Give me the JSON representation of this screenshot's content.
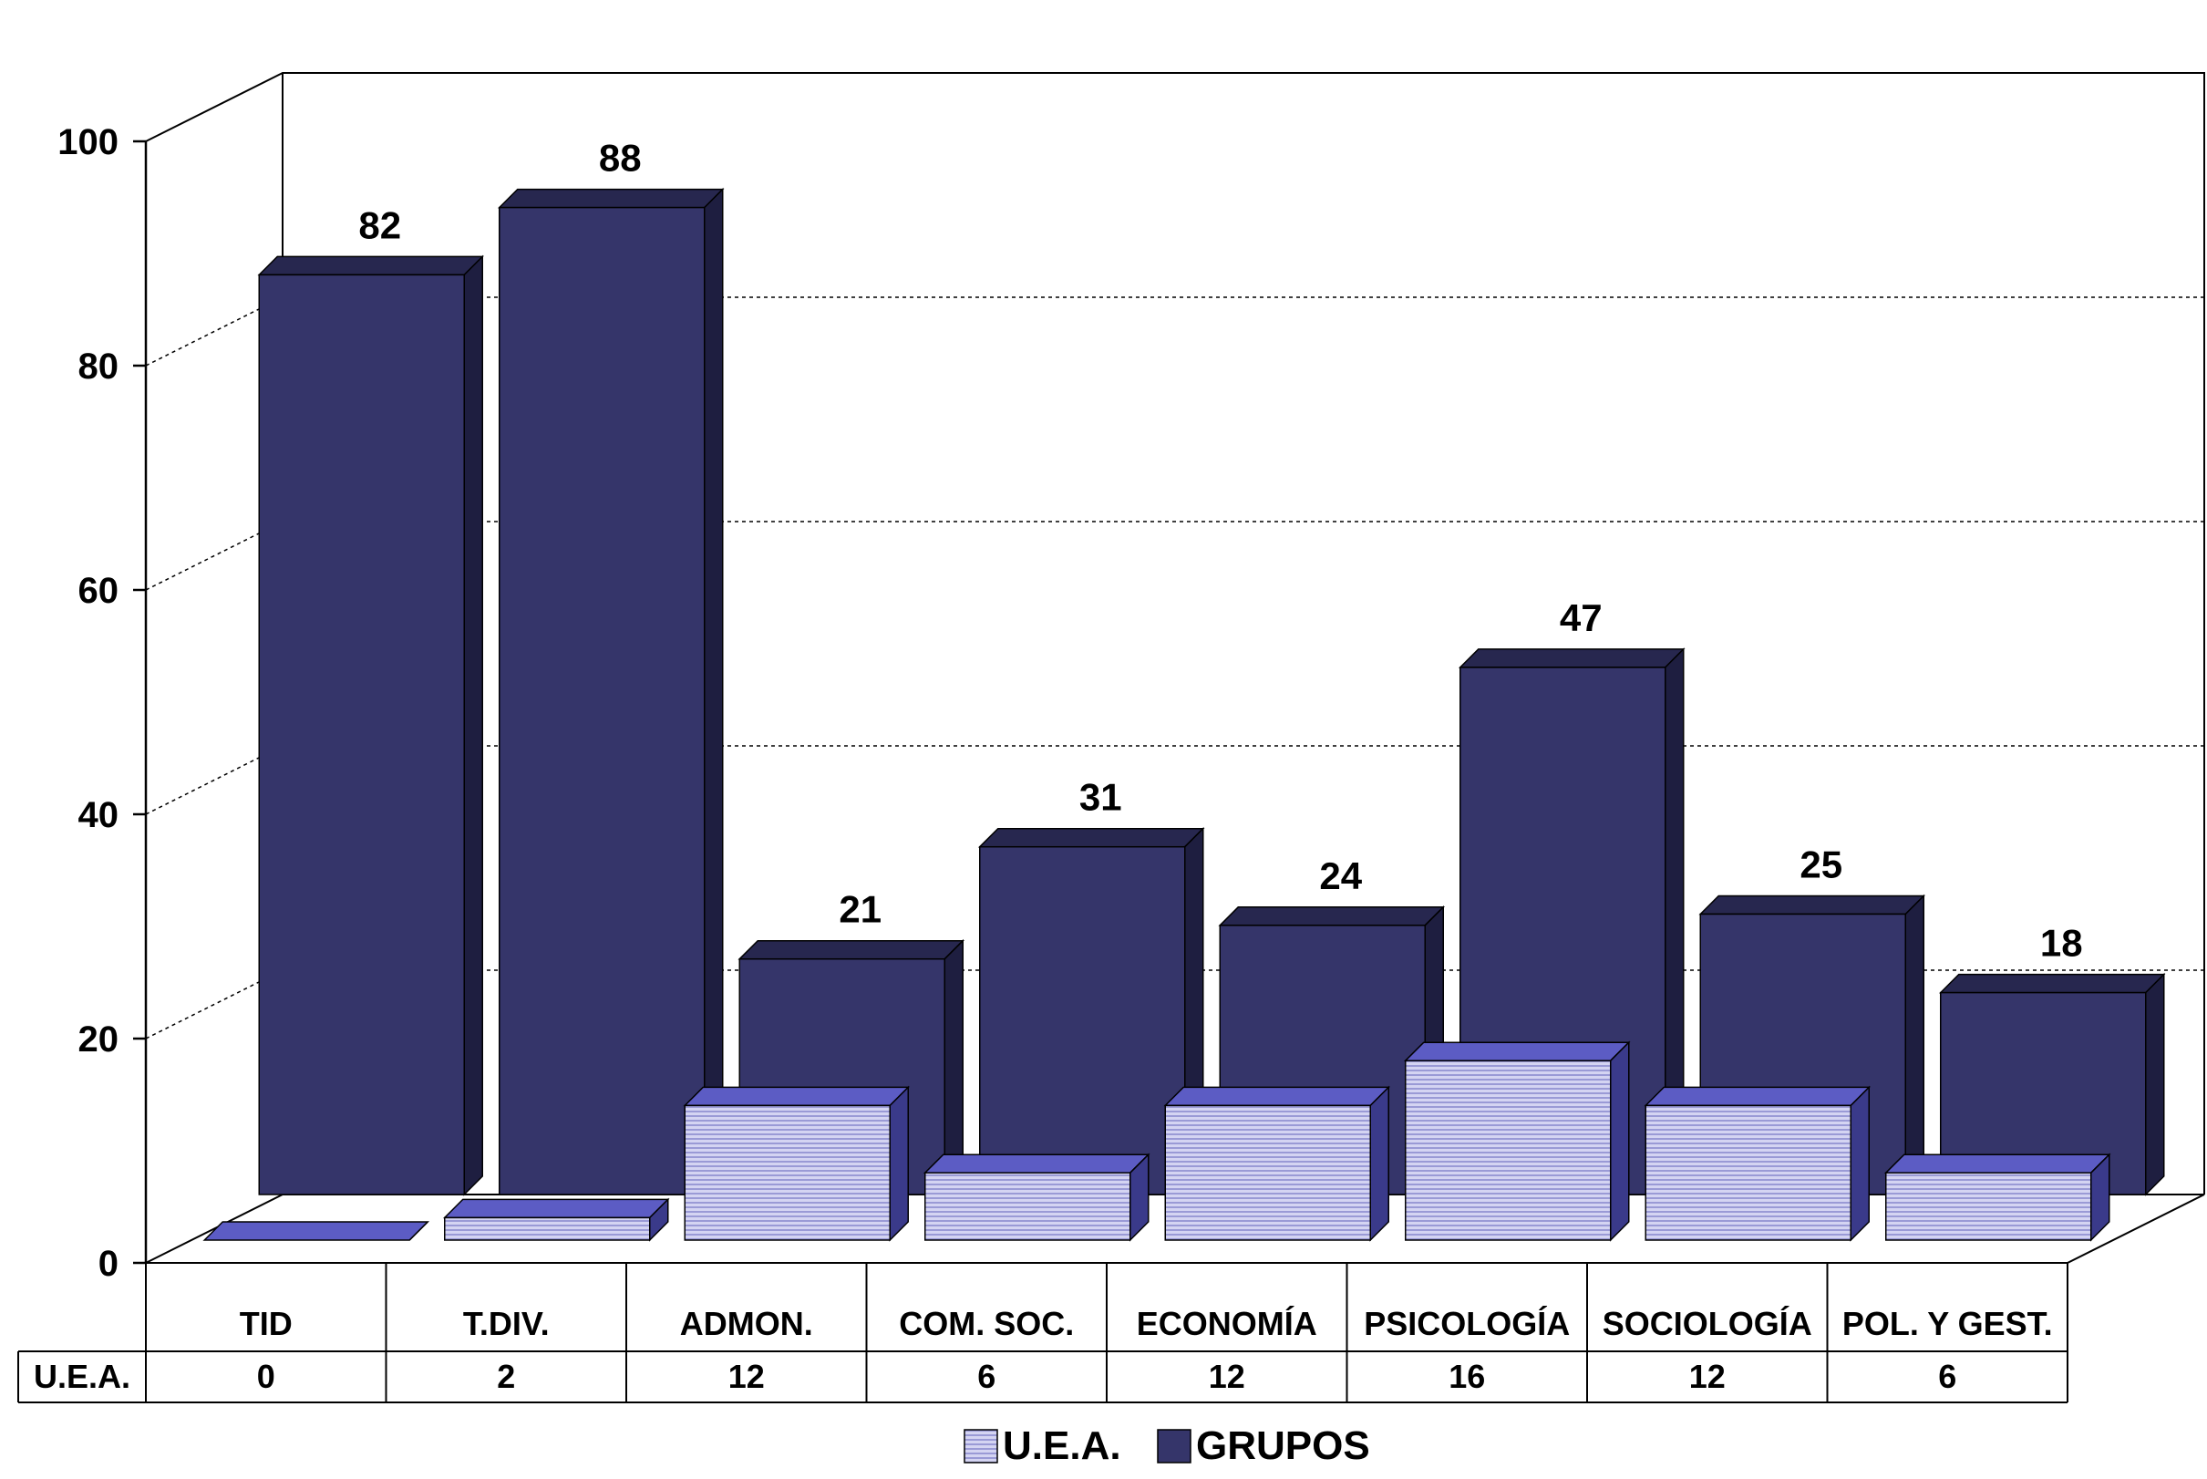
{
  "chart_data": {
    "type": "bar",
    "style": "3d-clustered-depth",
    "categories": [
      "TID",
      "T.DIV.",
      "ADMON.",
      "COM. SOC.",
      "ECONOMÍA",
      "PSICOLOGÍA",
      "SOCIOLOGÍA",
      "POL. Y GEST."
    ],
    "series": [
      {
        "name": "U.E.A.",
        "values": [
          0,
          2,
          12,
          6,
          12,
          16,
          12,
          6
        ],
        "color": "#c9c9ee",
        "pattern": "horizontal-lines",
        "top_color": "#5c5cc4",
        "side_color": "#3a3a8a"
      },
      {
        "name": "GRUPOS",
        "values": [
          82,
          88,
          21,
          31,
          24,
          47,
          25,
          18
        ],
        "color": "#35356a",
        "top_color": "#27274f",
        "side_color": "#1e1e40"
      }
    ],
    "ylim": [
      0,
      100
    ],
    "yticks": [
      0,
      20,
      40,
      60,
      80,
      100
    ],
    "grid": true,
    "legend": "bottom-center",
    "data_labels_series": "GRUPOS",
    "data_table": {
      "row_label": "U.E.A.",
      "values": [
        0,
        2,
        12,
        6,
        12,
        16,
        12,
        6
      ]
    }
  }
}
